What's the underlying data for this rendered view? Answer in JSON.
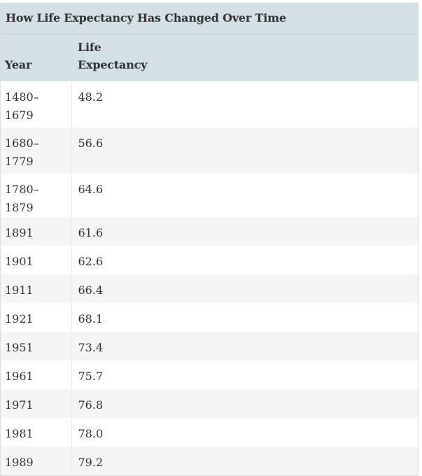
{
  "table": {
    "caption": "How Life Expectancy Has Changed Over Time",
    "headers": {
      "year": "Year",
      "life_line1": "Life",
      "life_line2": "Expectancy"
    },
    "rows": [
      {
        "year_line1": "1480–",
        "year_line2": "1679",
        "value": "48.2"
      },
      {
        "year_line1": "1680–",
        "year_line2": "1779",
        "value": "56.6"
      },
      {
        "year_line1": "1780–1879",
        "year_line2": "",
        "value": "64.6"
      },
      {
        "year_line1": "1891",
        "year_line2": "",
        "value": "61.6"
      },
      {
        "year_line1": "1901",
        "year_line2": "",
        "value": "62.6"
      },
      {
        "year_line1": "1911",
        "year_line2": "",
        "value": "66.4"
      },
      {
        "year_line1": "1921",
        "year_line2": "",
        "value": "68.1"
      },
      {
        "year_line1": "1951",
        "year_line2": "",
        "value": "73.4"
      },
      {
        "year_line1": "1961",
        "year_line2": "",
        "value": "75.7"
      },
      {
        "year_line1": "1971",
        "year_line2": "",
        "value": "76.8"
      },
      {
        "year_line1": "1981",
        "year_line2": "",
        "value": "78.0"
      },
      {
        "year_line1": "1989",
        "year_line2": "",
        "value": "79.2"
      }
    ]
  }
}
